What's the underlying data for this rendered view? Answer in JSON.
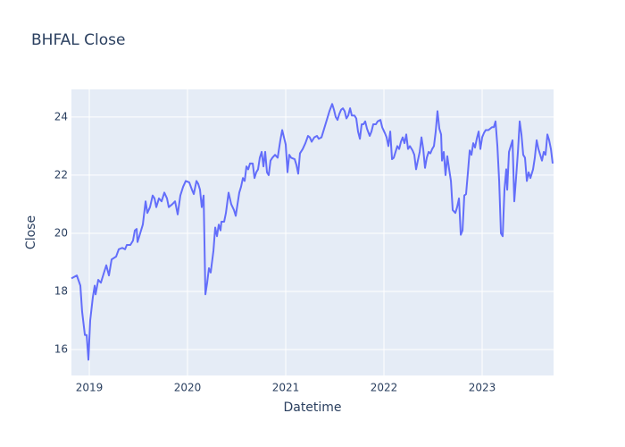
{
  "chart_data": {
    "type": "line",
    "title": "BHFAL Close",
    "xlabel": "Datetime",
    "ylabel": "Close",
    "color": "#636efa",
    "grid": true,
    "xlim": [
      2018.818,
      2023.727
    ],
    "xticks": [
      2019,
      2020,
      2021,
      2022,
      2023
    ],
    "ylim": [
      15.11,
      24.95
    ],
    "yticks": [
      16,
      18,
      20,
      22,
      24
    ],
    "x": [
      2018.818,
      2018.873,
      2018.909,
      2018.927,
      2018.955,
      2018.973,
      2018.991,
      2019.009,
      2019.036,
      2019.055,
      2019.064,
      2019.091,
      2019.118,
      2019.145,
      2019.173,
      2019.2,
      2019.227,
      2019.273,
      2019.3,
      2019.336,
      2019.364,
      2019.382,
      2019.418,
      2019.445,
      2019.464,
      2019.482,
      2019.491,
      2019.518,
      2019.545,
      2019.573,
      2019.591,
      2019.618,
      2019.645,
      2019.664,
      2019.682,
      2019.709,
      2019.736,
      2019.764,
      2019.791,
      2019.809,
      2019.845,
      2019.873,
      2019.9,
      2019.927,
      2019.955,
      2019.982,
      2020.018,
      2020.045,
      2020.064,
      2020.091,
      2020.109,
      2020.127,
      2020.145,
      2020.164,
      2020.182,
      2020.2,
      2020.218,
      2020.236,
      2020.264,
      2020.282,
      2020.3,
      2020.318,
      2020.336,
      2020.345,
      2020.373,
      2020.391,
      2020.418,
      2020.445,
      2020.473,
      2020.491,
      2020.509,
      2020.527,
      2020.545,
      2020.564,
      2020.582,
      2020.6,
      2020.618,
      2020.636,
      2020.664,
      2020.682,
      2020.7,
      2020.718,
      2020.736,
      2020.755,
      2020.773,
      2020.791,
      2020.809,
      2020.827,
      2020.845,
      2020.864,
      2020.891,
      2020.918,
      2020.945,
      2020.964,
      2020.982,
      2021.0,
      2021.018,
      2021.036,
      2021.055,
      2021.091,
      2021.109,
      2021.127,
      2021.145,
      2021.173,
      2021.2,
      2021.227,
      2021.245,
      2021.264,
      2021.291,
      2021.318,
      2021.336,
      2021.364,
      2021.391,
      2021.418,
      2021.445,
      2021.473,
      2021.491,
      2021.509,
      2021.527,
      2021.545,
      2021.564,
      2021.582,
      2021.6,
      2021.618,
      2021.636,
      2021.655,
      2021.673,
      2021.7,
      2021.718,
      2021.736,
      2021.755,
      2021.773,
      2021.791,
      2021.809,
      2021.827,
      2021.855,
      2021.873,
      2021.891,
      2021.918,
      2021.936,
      2021.964,
      2021.982,
      2022.009,
      2022.027,
      2022.045,
      2022.064,
      2022.082,
      2022.1,
      2022.118,
      2022.136,
      2022.155,
      2022.173,
      2022.191,
      2022.209,
      2022.227,
      2022.245,
      2022.264,
      2022.291,
      2022.309,
      2022.327,
      2022.345,
      2022.364,
      2022.382,
      2022.4,
      2022.418,
      2022.436,
      2022.455,
      2022.473,
      2022.491,
      2022.509,
      2022.527,
      2022.545,
      2022.564,
      2022.582,
      2022.591,
      2022.609,
      2022.627,
      2022.645,
      2022.664,
      2022.682,
      2022.7,
      2022.727,
      2022.745,
      2022.764,
      2022.782,
      2022.8,
      2022.818,
      2022.836,
      2022.855,
      2022.873,
      2022.891,
      2022.909,
      2022.927,
      2022.945,
      2022.964,
      2022.982,
      2023.0,
      2023.018,
      2023.036,
      2023.064,
      2023.082,
      2023.1,
      2023.118,
      2023.136,
      2023.155,
      2023.173,
      2023.191,
      2023.209,
      2023.227,
      2023.245,
      2023.255,
      2023.273,
      2023.291,
      2023.309,
      2023.327,
      2023.345,
      2023.364,
      2023.382,
      2023.4,
      2023.418,
      2023.436,
      2023.455,
      2023.473,
      2023.491,
      2023.518,
      2023.536,
      2023.555,
      2023.573,
      2023.591,
      2023.609,
      2023.627,
      2023.645,
      2023.664,
      2023.682,
      2023.7,
      2023.718
    ],
    "values": [
      18.45,
      18.55,
      18.2,
      17.3,
      16.5,
      16.5,
      15.65,
      17.0,
      17.8,
      18.2,
      17.9,
      18.4,
      18.3,
      18.6,
      18.9,
      18.55,
      19.1,
      19.2,
      19.45,
      19.5,
      19.45,
      19.6,
      19.6,
      19.75,
      20.1,
      20.15,
      19.7,
      20.0,
      20.3,
      21.1,
      20.7,
      20.9,
      21.3,
      21.2,
      20.9,
      21.2,
      21.1,
      21.4,
      21.2,
      20.9,
      21.0,
      21.1,
      20.65,
      21.3,
      21.6,
      21.8,
      21.75,
      21.5,
      21.35,
      21.8,
      21.7,
      21.5,
      20.9,
      21.3,
      17.9,
      18.3,
      18.8,
      18.65,
      19.4,
      20.2,
      19.9,
      20.3,
      20.1,
      20.4,
      20.4,
      20.7,
      21.4,
      21.0,
      20.8,
      20.6,
      21.0,
      21.4,
      21.6,
      21.9,
      21.8,
      22.3,
      22.2,
      22.4,
      22.4,
      21.9,
      22.1,
      22.2,
      22.6,
      22.8,
      22.3,
      22.8,
      22.1,
      22.0,
      22.5,
      22.6,
      22.7,
      22.6,
      23.2,
      23.55,
      23.3,
      23.05,
      22.1,
      22.7,
      22.6,
      22.55,
      22.35,
      22.05,
      22.75,
      22.9,
      23.1,
      23.35,
      23.3,
      23.15,
      23.3,
      23.35,
      23.25,
      23.3,
      23.6,
      23.9,
      24.2,
      24.45,
      24.25,
      24.0,
      23.9,
      24.1,
      24.25,
      24.3,
      24.2,
      23.95,
      24.05,
      24.3,
      24.05,
      24.05,
      23.95,
      23.5,
      23.25,
      23.75,
      23.75,
      23.85,
      23.6,
      23.35,
      23.5,
      23.75,
      23.75,
      23.85,
      23.9,
      23.65,
      23.45,
      23.3,
      23.0,
      23.5,
      22.55,
      22.6,
      22.8,
      23.0,
      22.9,
      23.15,
      23.3,
      23.1,
      23.4,
      22.9,
      23.0,
      22.85,
      22.7,
      22.2,
      22.5,
      22.8,
      23.3,
      22.9,
      22.25,
      22.6,
      22.8,
      22.75,
      22.9,
      23.0,
      23.5,
      24.2,
      23.6,
      23.4,
      22.5,
      22.8,
      22.0,
      22.65,
      22.2,
      21.8,
      20.8,
      20.7,
      20.9,
      21.2,
      19.95,
      20.1,
      21.3,
      21.35,
      22.1,
      22.85,
      22.7,
      23.1,
      22.95,
      23.25,
      23.5,
      22.9,
      23.3,
      23.45,
      23.55,
      23.55,
      23.6,
      23.65,
      23.65,
      23.85,
      23.0,
      21.8,
      20.0,
      19.9,
      21.5,
      22.2,
      21.5,
      22.8,
      23.0,
      23.2,
      21.1,
      21.9,
      22.8,
      23.85,
      23.4,
      22.7,
      22.6,
      21.8,
      22.1,
      21.9,
      22.2,
      22.6,
      23.2,
      22.9,
      22.7,
      22.5,
      22.8,
      22.7,
      23.4,
      23.2,
      22.9,
      22.4
    ]
  }
}
